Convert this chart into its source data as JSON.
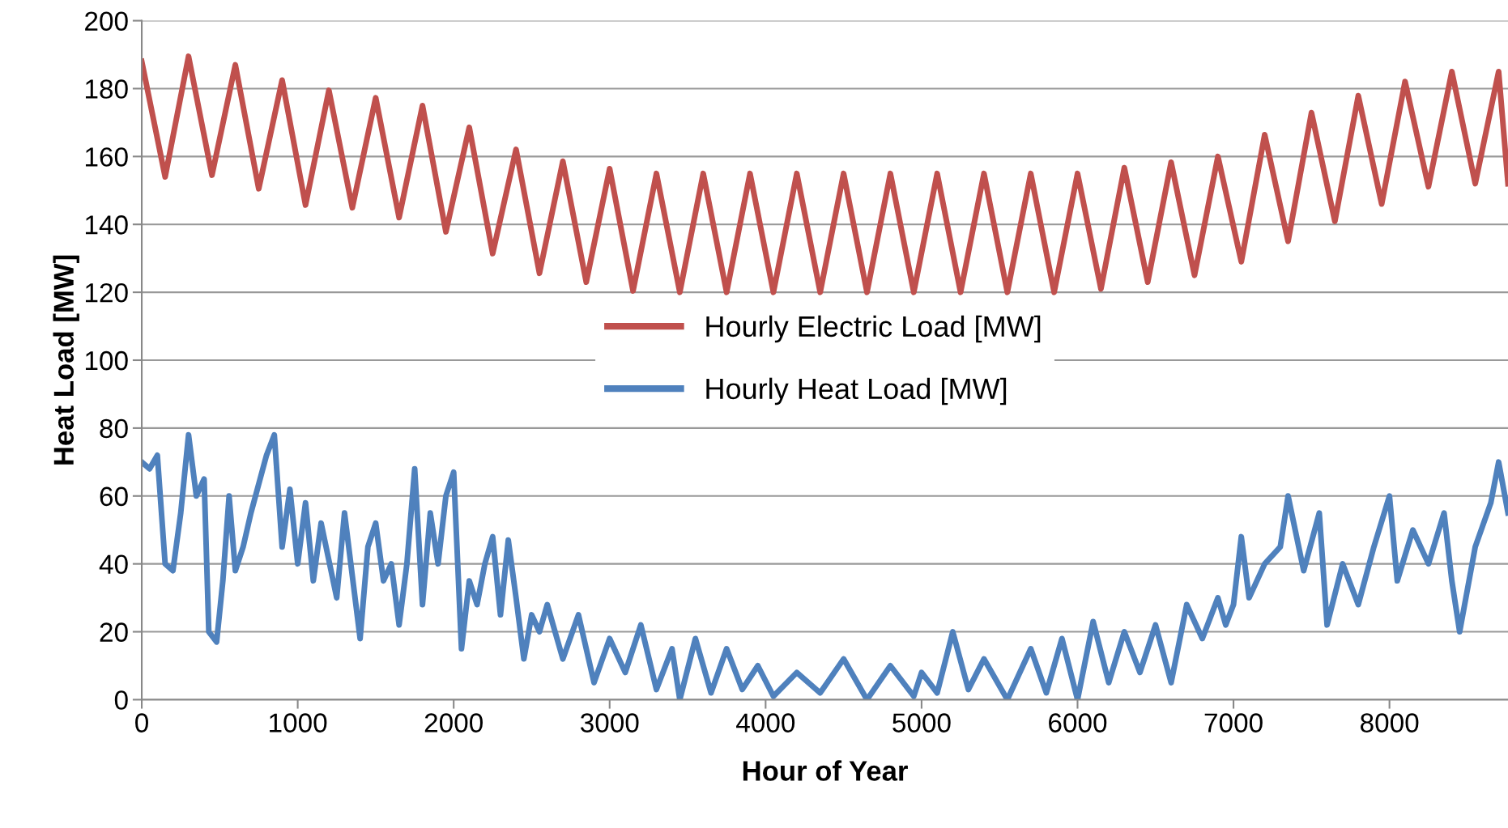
{
  "chart_data": {
    "type": "line",
    "xlabel": "Hour of Year",
    "ylabel": "Heat Load [MW]",
    "xlim": [
      0,
      8760
    ],
    "xticks": [
      0,
      1000,
      2000,
      3000,
      4000,
      5000,
      6000,
      7000,
      8000
    ],
    "ylim": [
      0,
      200
    ],
    "yticks": [
      0,
      20,
      40,
      60,
      80,
      100,
      120,
      140,
      160,
      180,
      200
    ],
    "grid": "y",
    "legend": "center",
    "marker": "none",
    "line_style": "solid",
    "series": [
      {
        "name": "Hourly Electric Load [MW]",
        "color": "#c0504d",
        "x": [
          0,
          150,
          300,
          450,
          600,
          750,
          900,
          1050,
          1200,
          1350,
          1500,
          1650,
          1800,
          1950,
          2100,
          2250,
          2400,
          2550,
          2700,
          2850,
          3000,
          3150,
          3300,
          3450,
          3600,
          3750,
          3900,
          4050,
          4200,
          4350,
          4500,
          4650,
          4800,
          4950,
          5100,
          5250,
          5400,
          5550,
          5700,
          5850,
          6000,
          6150,
          6300,
          6450,
          6600,
          6750,
          6900,
          7050,
          7200,
          7350,
          7500,
          7650,
          7800,
          7950,
          8100,
          8250,
          8400,
          8550,
          8700,
          8760
        ],
        "values": [
          188,
          154,
          189.5,
          154.5,
          187,
          150.5,
          182.5,
          145.7,
          179.5,
          144.9,
          177.3,
          142,
          175,
          137.8,
          168.6,
          131.4,
          162.1,
          125.6,
          158.6,
          123,
          156.4,
          120.4,
          155,
          120,
          155,
          120,
          155,
          120,
          155,
          120,
          155,
          120,
          155,
          120,
          155,
          120,
          155,
          120,
          155,
          120,
          155,
          121,
          156.7,
          123,
          158.3,
          125,
          160,
          129,
          166.4,
          135,
          172.9,
          140.9,
          177.9,
          146,
          182.1,
          151.1,
          185,
          152,
          185,
          152
        ]
      },
      {
        "name": "Hourly Heat Load [MW]",
        "color": "#4f81bd",
        "x": [
          0,
          50,
          100,
          150,
          200,
          250,
          300,
          350,
          400,
          430,
          480,
          520,
          560,
          600,
          650,
          700,
          800,
          850,
          900,
          950,
          1000,
          1050,
          1100,
          1150,
          1250,
          1300,
          1400,
          1450,
          1500,
          1550,
          1600,
          1650,
          1700,
          1750,
          1800,
          1850,
          1900,
          1950,
          2000,
          2050,
          2100,
          2150,
          2200,
          2250,
          2300,
          2350,
          2400,
          2450,
          2500,
          2550,
          2600,
          2700,
          2800,
          2900,
          3000,
          3100,
          3200,
          3300,
          3400,
          3450,
          3550,
          3650,
          3750,
          3850,
          3950,
          4050,
          4200,
          4350,
          4500,
          4650,
          4800,
          4950,
          5000,
          5100,
          5200,
          5300,
          5400,
          5550,
          5700,
          5800,
          5900,
          6000,
          6100,
          6200,
          6300,
          6400,
          6500,
          6600,
          6700,
          6800,
          6900,
          6950,
          7000,
          7050,
          7100,
          7200,
          7300,
          7350,
          7450,
          7550,
          7600,
          7700,
          7800,
          7900,
          8000,
          8050,
          8150,
          8250,
          8350,
          8400,
          8450,
          8550,
          8650,
          8700,
          8760
        ],
        "values": [
          70,
          68,
          72,
          40,
          38,
          55,
          78,
          60,
          65,
          20,
          17,
          35,
          60,
          38,
          45,
          55,
          72,
          78,
          45,
          62,
          40,
          58,
          35,
          52,
          30,
          55,
          18,
          45,
          52,
          35,
          40,
          22,
          40,
          68,
          28,
          55,
          40,
          60,
          67,
          15,
          35,
          28,
          40,
          48,
          25,
          47,
          30,
          12,
          25,
          20,
          28,
          12,
          25,
          5,
          18,
          8,
          22,
          3,
          15,
          0,
          18,
          2,
          15,
          3,
          10,
          1,
          8,
          2,
          12,
          0,
          10,
          1,
          8,
          2,
          20,
          3,
          12,
          0,
          15,
          2,
          18,
          0,
          23,
          5,
          20,
          8,
          22,
          5,
          28,
          18,
          30,
          22,
          28,
          48,
          30,
          40,
          45,
          60,
          38,
          55,
          22,
          40,
          28,
          45,
          60,
          35,
          50,
          40,
          55,
          35,
          20,
          45,
          58,
          70,
          55
        ]
      }
    ]
  }
}
